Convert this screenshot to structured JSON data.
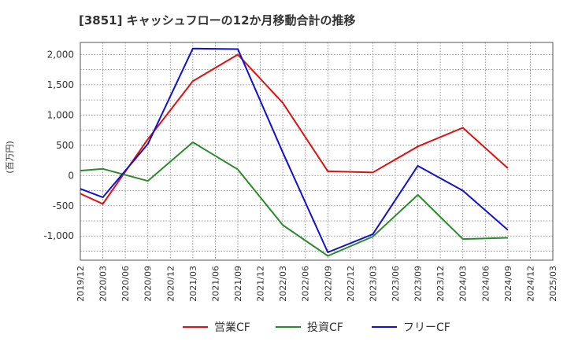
{
  "chart_data": {
    "type": "line",
    "title": "[3851]  キャッシュフローの12か月移動合計の推移",
    "ylabel": "(百万円)",
    "xlabel": "",
    "ylim": [
      -1400,
      2200
    ],
    "yticks": [
      2000,
      1500,
      1000,
      500,
      0,
      -500,
      -1000
    ],
    "ytick_labels": [
      "2,000",
      "1,500",
      "1,000",
      "500",
      "0",
      "-500",
      "-1,000"
    ],
    "categories": [
      "2019/12",
      "2020/03",
      "2020/06",
      "2020/09",
      "2020/12",
      "2021/03",
      "2021/06",
      "2021/09",
      "2021/12",
      "2022/03",
      "2022/06",
      "2022/09",
      "2022/12",
      "2023/03",
      "2023/06",
      "2023/09",
      "2023/12",
      "2024/03",
      "2024/06",
      "2024/09",
      "2024/12",
      "2025/03"
    ],
    "grid": true,
    "legend_position": "bottom",
    "series": [
      {
        "name": "営業CF",
        "color": "#dd1111",
        "values": [
          -300,
          -470,
          null,
          600,
          null,
          1560,
          null,
          2000,
          null,
          1200,
          null,
          70,
          null,
          50,
          null,
          480,
          null,
          790,
          null,
          120,
          null,
          null
        ]
      },
      {
        "name": "投資CF",
        "color": "#2a8a2a",
        "values": [
          80,
          110,
          null,
          -90,
          null,
          550,
          null,
          100,
          null,
          -820,
          null,
          -1330,
          null,
          -1010,
          null,
          -320,
          null,
          -1050,
          null,
          -1030,
          null,
          null
        ]
      },
      {
        "name": "フリーCF",
        "color": "#1111cc",
        "values": [
          -220,
          -360,
          null,
          520,
          null,
          2100,
          null,
          2090,
          null,
          380,
          null,
          -1270,
          null,
          -970,
          null,
          160,
          null,
          -250,
          null,
          -900,
          null,
          null
        ]
      }
    ]
  }
}
